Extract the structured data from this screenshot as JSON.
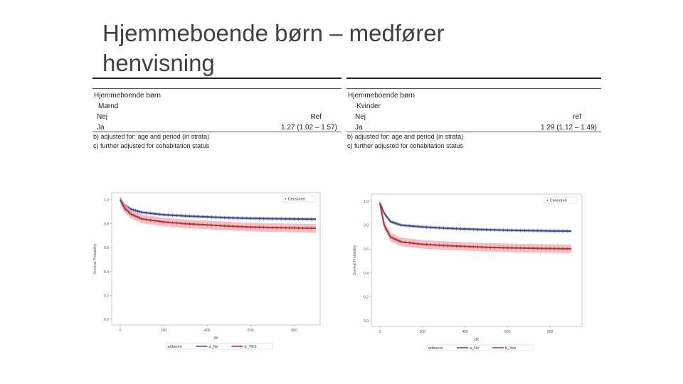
{
  "title_line1": "Hjemmeboende børn – medfører",
  "title_line2": "henvisning",
  "left_table": {
    "header": "Hjemmeboende børn",
    "group": "Mænd",
    "row1_label": "Nej",
    "row1_value": "Ref",
    "row2_label": "Ja",
    "row2_value": "1.27  (1.02 – 1.57)",
    "note_b": "b) adjusted for: age and period (in strata)",
    "note_c": "c) further adjusted for cohabitation status"
  },
  "right_table": {
    "header": "Hjemmeboende børn",
    "group": "Kvinder",
    "row1_label": "Nej",
    "row1_value": "ref",
    "row2_label": "Ja",
    "row2_value": "1.29  (1.12 – 1.49)",
    "note_b": "b) adjusted for: age and period (in strata)",
    "note_c": "c) further adjusted for cohabitation status"
  },
  "colors": {
    "no": "#3b4e8c",
    "yes": "#b03040",
    "band": "#f2a9ab",
    "frame": "#c8c8c8"
  },
  "chart_data": [
    {
      "type": "line",
      "ylabel": "Survival Probability",
      "xlabel": "dx",
      "ylim": [
        0,
        1.0
      ],
      "xlim": [
        0,
        900
      ],
      "x_ticks": [
        "0",
        "200",
        "400",
        "600",
        "800"
      ],
      "y_ticks": [
        "0.0",
        "0.2",
        "0.4",
        "0.6",
        "0.8",
        "1.0"
      ],
      "legend_censored": "+ Censored",
      "legend_title": "artbeorn",
      "series": [
        {
          "name": "a_No",
          "x": [
            0,
            20,
            50,
            100,
            200,
            300,
            400,
            500,
            600,
            700,
            800,
            900
          ],
          "values": [
            1.0,
            0.955,
            0.92,
            0.895,
            0.875,
            0.865,
            0.857,
            0.85,
            0.845,
            0.842,
            0.84,
            0.838
          ]
        },
        {
          "name": "b_YES",
          "x": [
            0,
            20,
            50,
            100,
            200,
            300,
            400,
            500,
            600,
            700,
            800,
            900
          ],
          "values": [
            1.0,
            0.93,
            0.88,
            0.84,
            0.815,
            0.8,
            0.79,
            0.78,
            0.772,
            0.768,
            0.765,
            0.762
          ]
        }
      ]
    },
    {
      "type": "line",
      "ylabel": "Survival Probability",
      "xlabel": "dx",
      "ylim": [
        0,
        1.0
      ],
      "xlim": [
        0,
        930
      ],
      "x_ticks": [
        "0",
        "200",
        "400",
        "600",
        "800"
      ],
      "y_ticks": [
        "0.0",
        "0.2",
        "0.4",
        "0.6",
        "0.8",
        "1.0"
      ],
      "legend_censored": "+ Censored",
      "legend_title": "artbeorn",
      "series": [
        {
          "name": "a_No",
          "x": [
            0,
            20,
            50,
            100,
            200,
            300,
            400,
            500,
            600,
            700,
            800,
            900
          ],
          "values": [
            0.985,
            0.9,
            0.83,
            0.8,
            0.785,
            0.775,
            0.768,
            0.762,
            0.758,
            0.755,
            0.752,
            0.75
          ]
        },
        {
          "name": "b_Yes",
          "x": [
            0,
            20,
            50,
            100,
            200,
            300,
            400,
            500,
            600,
            700,
            800,
            900
          ],
          "values": [
            0.98,
            0.8,
            0.7,
            0.66,
            0.64,
            0.63,
            0.622,
            0.615,
            0.61,
            0.607,
            0.604,
            0.602
          ]
        }
      ]
    }
  ]
}
